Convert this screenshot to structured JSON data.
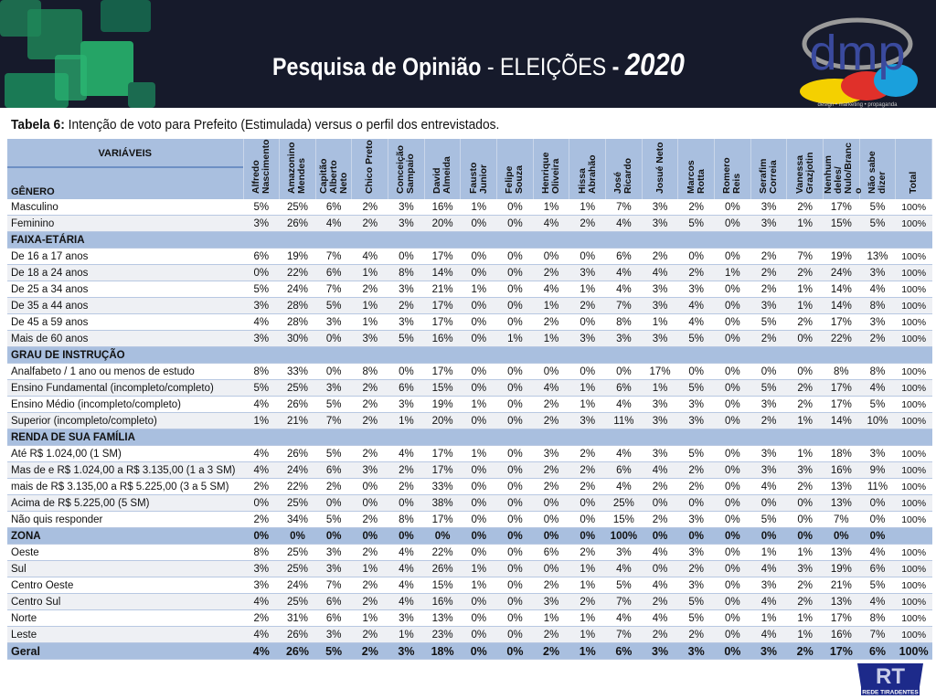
{
  "banner": {
    "title_bold": "Pesquisa de Opinião",
    "title_sep1": " - ",
    "title_thin": "ELEIÇÕES",
    "title_sep2": " - ",
    "year": "2020",
    "logo_text": "dmp",
    "logo_tagline": "design • marketing • propaganda",
    "colors": {
      "background": "#161a2b",
      "logo_blue": "#3a4a9e",
      "logo_yellow": "#f4d000",
      "logo_red": "#e0302a",
      "logo_cyan": "#1aa0dc"
    }
  },
  "subtitle": {
    "label": "Tabela 6:",
    "text": " Intenção de voto para Prefeito (Estimulada) versus o perfil dos entrevistados."
  },
  "table": {
    "variables_label": "VARIÁVEIS",
    "columns": [
      "Alfredo\nNascimento",
      "Amazonino\nMendes",
      "Capitão\nAlberto\nNeto",
      "Chico Preto",
      "Conceição\nSampaio",
      "David\nAlmeida",
      "Fausto\nJunior",
      "Felipe\nSouza",
      "Henrique\nOliveira",
      "Hissa\nAbrahão",
      "José\nRicardo",
      "Josué Neto",
      "Marcos\nRotta",
      "Romero\nReis",
      "Serafim\nCorreia",
      "Vanessa\nGrazjotin",
      "Nenhum\ndeles/\nNulo/Branc\no",
      "Não sabe\ndizer",
      "Total"
    ],
    "sections": [
      {
        "title": "GÊNERO",
        "rows": [
          {
            "label": "Masculino",
            "values": [
              "5%",
              "25%",
              "6%",
              "2%",
              "3%",
              "16%",
              "1%",
              "0%",
              "1%",
              "1%",
              "7%",
              "3%",
              "2%",
              "0%",
              "3%",
              "2%",
              "17%",
              "5%",
              "100%"
            ]
          },
          {
            "label": "Feminino",
            "values": [
              "3%",
              "26%",
              "4%",
              "2%",
              "3%",
              "20%",
              "0%",
              "0%",
              "4%",
              "2%",
              "4%",
              "3%",
              "5%",
              "0%",
              "3%",
              "1%",
              "15%",
              "5%",
              "100%"
            ]
          }
        ]
      },
      {
        "title": "FAIXA-ETÁRIA",
        "rows": [
          {
            "label": "De 16 a 17 anos",
            "values": [
              "6%",
              "19%",
              "7%",
              "4%",
              "0%",
              "17%",
              "0%",
              "0%",
              "0%",
              "0%",
              "6%",
              "2%",
              "0%",
              "0%",
              "2%",
              "7%",
              "19%",
              "13%",
              "100%"
            ]
          },
          {
            "label": "De 18 a 24 anos",
            "values": [
              "0%",
              "22%",
              "6%",
              "1%",
              "8%",
              "14%",
              "0%",
              "0%",
              "2%",
              "3%",
              "4%",
              "4%",
              "2%",
              "1%",
              "2%",
              "2%",
              "24%",
              "3%",
              "100%"
            ]
          },
          {
            "label": "De 25 a 34 anos",
            "values": [
              "5%",
              "24%",
              "7%",
              "2%",
              "3%",
              "21%",
              "1%",
              "0%",
              "4%",
              "1%",
              "4%",
              "3%",
              "3%",
              "0%",
              "2%",
              "1%",
              "14%",
              "4%",
              "100%"
            ]
          },
          {
            "label": "De 35 a 44 anos",
            "values": [
              "3%",
              "28%",
              "5%",
              "1%",
              "2%",
              "17%",
              "0%",
              "0%",
              "1%",
              "2%",
              "7%",
              "3%",
              "4%",
              "0%",
              "3%",
              "1%",
              "14%",
              "8%",
              "100%"
            ]
          },
          {
            "label": "De 45 a 59 anos",
            "values": [
              "4%",
              "28%",
              "3%",
              "1%",
              "3%",
              "17%",
              "0%",
              "0%",
              "2%",
              "0%",
              "8%",
              "1%",
              "4%",
              "0%",
              "5%",
              "2%",
              "17%",
              "3%",
              "100%"
            ]
          },
          {
            "label": "Mais de 60 anos",
            "values": [
              "3%",
              "30%",
              "0%",
              "3%",
              "5%",
              "16%",
              "0%",
              "1%",
              "1%",
              "3%",
              "3%",
              "3%",
              "5%",
              "0%",
              "2%",
              "0%",
              "22%",
              "2%",
              "100%"
            ]
          }
        ]
      },
      {
        "title": "GRAU DE INSTRUÇÃO",
        "rows": [
          {
            "label": "Analfabeto / 1 ano ou menos de estudo",
            "values": [
              "8%",
              "33%",
              "0%",
              "8%",
              "0%",
              "17%",
              "0%",
              "0%",
              "0%",
              "0%",
              "0%",
              "17%",
              "0%",
              "0%",
              "0%",
              "0%",
              "8%",
              "8%",
              "100%"
            ]
          },
          {
            "label": "Ensino Fundamental (incompleto/completo)",
            "values": [
              "5%",
              "25%",
              "3%",
              "2%",
              "6%",
              "15%",
              "0%",
              "0%",
              "4%",
              "1%",
              "6%",
              "1%",
              "5%",
              "0%",
              "5%",
              "2%",
              "17%",
              "4%",
              "100%"
            ]
          },
          {
            "label": "Ensino Médio (incompleto/completo)",
            "values": [
              "4%",
              "26%",
              "5%",
              "2%",
              "3%",
              "19%",
              "1%",
              "0%",
              "2%",
              "1%",
              "4%",
              "3%",
              "3%",
              "0%",
              "3%",
              "2%",
              "17%",
              "5%",
              "100%"
            ]
          },
          {
            "label": "Superior (incompleto/completo)",
            "values": [
              "1%",
              "21%",
              "7%",
              "2%",
              "1%",
              "20%",
              "0%",
              "0%",
              "2%",
              "3%",
              "11%",
              "3%",
              "3%",
              "0%",
              "2%",
              "1%",
              "14%",
              "10%",
              "100%"
            ]
          }
        ]
      },
      {
        "title": "RENDA DE SUA FAMÍLIA",
        "rows": [
          {
            "label": "Até R$ 1.024,00 (1 SM)",
            "values": [
              "4%",
              "26%",
              "5%",
              "2%",
              "4%",
              "17%",
              "1%",
              "0%",
              "3%",
              "2%",
              "4%",
              "3%",
              "5%",
              "0%",
              "3%",
              "1%",
              "18%",
              "3%",
              "100%"
            ]
          },
          {
            "label": "Mas de e R$ 1.024,00 a R$ 3.135,00 (1 a 3 SM)",
            "values": [
              "4%",
              "24%",
              "6%",
              "3%",
              "2%",
              "17%",
              "0%",
              "0%",
              "2%",
              "2%",
              "6%",
              "4%",
              "2%",
              "0%",
              "3%",
              "3%",
              "16%",
              "9%",
              "100%"
            ]
          },
          {
            "label": "mais de R$ 3.135,00 a R$ 5.225,00 (3 a 5 SM)",
            "values": [
              "2%",
              "22%",
              "2%",
              "0%",
              "2%",
              "33%",
              "0%",
              "0%",
              "2%",
              "2%",
              "4%",
              "2%",
              "2%",
              "0%",
              "4%",
              "2%",
              "13%",
              "11%",
              "100%"
            ]
          },
          {
            "label": "Acima de R$ 5.225,00 (5 SM)",
            "values": [
              "0%",
              "25%",
              "0%",
              "0%",
              "0%",
              "38%",
              "0%",
              "0%",
              "0%",
              "0%",
              "25%",
              "0%",
              "0%",
              "0%",
              "0%",
              "0%",
              "13%",
              "0%",
              "100%"
            ]
          },
          {
            "label": "Não quis responder",
            "values": [
              "2%",
              "34%",
              "5%",
              "2%",
              "8%",
              "17%",
              "0%",
              "0%",
              "0%",
              "0%",
              "15%",
              "2%",
              "3%",
              "0%",
              "5%",
              "0%",
              "7%",
              "0%",
              "100%"
            ]
          }
        ]
      },
      {
        "title": "ZONA",
        "values": [
          "0%",
          "0%",
          "0%",
          "0%",
          "0%",
          "0%",
          "0%",
          "0%",
          "0%",
          "0%",
          "100%",
          "0%",
          "0%",
          "0%",
          "0%",
          "0%",
          "0%",
          "0%",
          ""
        ],
        "rows": [
          {
            "label": "Oeste",
            "values": [
              "8%",
              "25%",
              "3%",
              "2%",
              "4%",
              "22%",
              "0%",
              "0%",
              "6%",
              "2%",
              "3%",
              "4%",
              "3%",
              "0%",
              "1%",
              "1%",
              "13%",
              "4%",
              "100%"
            ]
          },
          {
            "label": "Sul",
            "values": [
              "3%",
              "25%",
              "3%",
              "1%",
              "4%",
              "26%",
              "1%",
              "0%",
              "0%",
              "1%",
              "4%",
              "0%",
              "2%",
              "0%",
              "4%",
              "3%",
              "19%",
              "6%",
              "100%"
            ]
          },
          {
            "label": "Centro Oeste",
            "values": [
              "3%",
              "24%",
              "7%",
              "2%",
              "4%",
              "15%",
              "1%",
              "0%",
              "2%",
              "1%",
              "5%",
              "4%",
              "3%",
              "0%",
              "3%",
              "2%",
              "21%",
              "5%",
              "100%"
            ]
          },
          {
            "label": "Centro Sul",
            "values": [
              "4%",
              "25%",
              "6%",
              "2%",
              "4%",
              "16%",
              "0%",
              "0%",
              "3%",
              "2%",
              "7%",
              "2%",
              "5%",
              "0%",
              "4%",
              "2%",
              "13%",
              "4%",
              "100%"
            ]
          },
          {
            "label": "Norte",
            "values": [
              "2%",
              "31%",
              "6%",
              "1%",
              "3%",
              "13%",
              "0%",
              "0%",
              "1%",
              "1%",
              "4%",
              "4%",
              "5%",
              "0%",
              "1%",
              "1%",
              "17%",
              "8%",
              "100%"
            ]
          },
          {
            "label": "Leste",
            "values": [
              "4%",
              "26%",
              "3%",
              "2%",
              "1%",
              "23%",
              "0%",
              "0%",
              "2%",
              "1%",
              "7%",
              "2%",
              "2%",
              "0%",
              "4%",
              "1%",
              "16%",
              "7%",
              "100%"
            ]
          }
        ]
      }
    ],
    "total_row": {
      "label": "Geral",
      "values": [
        "4%",
        "26%",
        "5%",
        "2%",
        "3%",
        "18%",
        "0%",
        "0%",
        "2%",
        "1%",
        "6%",
        "3%",
        "3%",
        "0%",
        "3%",
        "2%",
        "17%",
        "6%",
        "100%"
      ]
    },
    "colors": {
      "header": "#a9bfdf",
      "row_alt": "#eef0f4",
      "divider": "#b8c8e2"
    }
  },
  "footer_logo": {
    "text": "REDE TIRADENTES",
    "color": "#1d2a8a"
  }
}
